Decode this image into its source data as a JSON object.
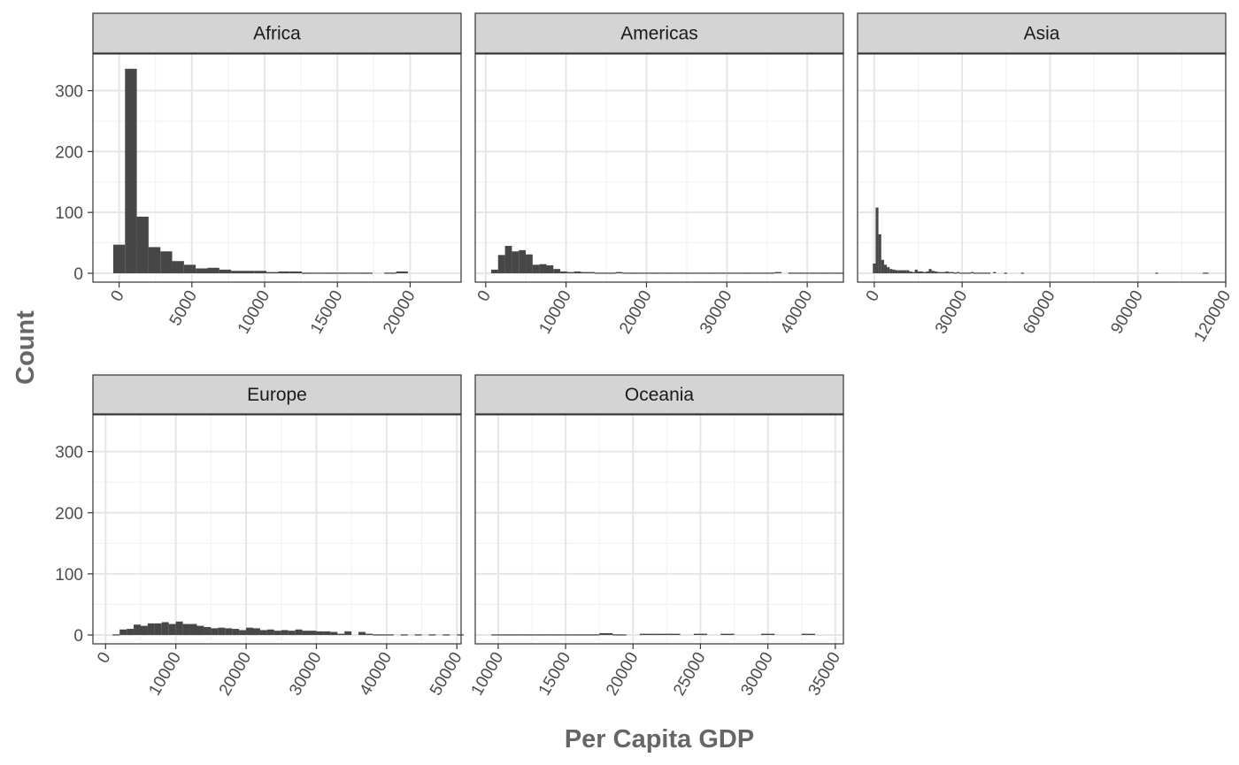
{
  "chart_data": {
    "type": "bar",
    "subtype": "faceted-histogram",
    "xlabel": "Per Capita GDP",
    "ylabel": "Count",
    "ylim": [
      0,
      350
    ],
    "y_ticks": [
      0,
      100,
      200,
      300
    ],
    "grid": true,
    "bar_color": "#474747",
    "strip_fill": "#d4d4d4",
    "facet_layout": {
      "columns": 3,
      "rows": 2
    },
    "facets": [
      {
        "name": "Africa",
        "xlim": [
          -1800,
          23500
        ],
        "x_ticks": [
          0,
          5000,
          10000,
          15000,
          20000
        ],
        "tick_labels": [
          "0",
          "5000",
          "10000",
          "15000",
          "20000"
        ],
        "bin_width": 810,
        "bins_start": -405,
        "counts": [
          47,
          336,
          93,
          43,
          36,
          20,
          14,
          8,
          9,
          6,
          4,
          4,
          4,
          2,
          3,
          3,
          1,
          1,
          1,
          1,
          1,
          1,
          0,
          1,
          3
        ]
      },
      {
        "name": "Americas",
        "xlim": [
          -1300,
          44500
        ],
        "x_ticks": [
          0,
          10000,
          20000,
          30000,
          40000
        ],
        "tick_labels": [
          "0",
          "10000",
          "20000",
          "30000",
          "40000"
        ],
        "bin_width": 860,
        "bins_start": 680,
        "counts": [
          6,
          30,
          45,
          36,
          38,
          31,
          14,
          15,
          13,
          7,
          3,
          2,
          3,
          2,
          2,
          1,
          1,
          1,
          2,
          1,
          1,
          1,
          1,
          1,
          1,
          1,
          1,
          1,
          1,
          1,
          1,
          1,
          1,
          1,
          1,
          1,
          1,
          1,
          1,
          1,
          1,
          2,
          0,
          1,
          1,
          1,
          1,
          1,
          1,
          1,
          1
        ]
      },
      {
        "name": "Asia",
        "xlim": [
          -5700,
          120000
        ],
        "x_ticks": [
          0,
          30000,
          60000,
          90000,
          120000
        ],
        "tick_labels": [
          "0",
          "30000",
          "60000",
          "90000",
          "120000"
        ],
        "bin_width": 955,
        "bins_start": -478,
        "counts": [
          16,
          108,
          64,
          22,
          14,
          10,
          7,
          6,
          5,
          5,
          5,
          5,
          5,
          3,
          2,
          6,
          3,
          3,
          2,
          3,
          7,
          4,
          3,
          2,
          2,
          2,
          3,
          2,
          2,
          1,
          2,
          1,
          1,
          1,
          1,
          2,
          1,
          1,
          1,
          1,
          1,
          1,
          0,
          2,
          0,
          0,
          0,
          1,
          0,
          0,
          0,
          0,
          0,
          1,
          0,
          0,
          0,
          0,
          0,
          0,
          0,
          0,
          0,
          0,
          0,
          0,
          0,
          0,
          0,
          0,
          0,
          0,
          0,
          0,
          0,
          0,
          0,
          0,
          0,
          0,
          0,
          0,
          0,
          0,
          0,
          0,
          0,
          0,
          0,
          0,
          0,
          0,
          0,
          0,
          0,
          0,
          0,
          0,
          0,
          0,
          0,
          1,
          0,
          0,
          0,
          0,
          0,
          0,
          0,
          0,
          0,
          0,
          0,
          0,
          0,
          0,
          0,
          0,
          1,
          1
        ]
      },
      {
        "name": "Europe",
        "xlim": [
          -1800,
          50600
        ],
        "x_ticks": [
          0,
          10000,
          20000,
          30000,
          40000,
          50000
        ],
        "tick_labels": [
          "0",
          "10000",
          "20000",
          "30000",
          "40000",
          "50000"
        ],
        "bin_width": 1000,
        "bins_start": 1000,
        "counts": [
          1,
          9,
          10,
          17,
          15,
          19,
          19,
          21,
          18,
          22,
          18,
          18,
          15,
          13,
          11,
          12,
          11,
          10,
          8,
          12,
          11,
          8,
          9,
          7,
          8,
          7,
          9,
          7,
          7,
          6,
          6,
          5,
          2,
          6,
          0,
          5,
          2,
          1,
          1,
          1,
          0,
          1,
          0,
          1,
          0,
          1,
          0,
          1,
          0,
          1
        ]
      },
      {
        "name": "Oceania",
        "xlim": [
          8300,
          35600
        ],
        "x_ticks": [
          10000,
          15000,
          20000,
          25000,
          30000,
          35000
        ],
        "tick_labels": [
          "10000",
          "15000",
          "20000",
          "25000",
          "30000",
          "35000"
        ],
        "bin_width": 1000,
        "bins_start": 9500,
        "counts": [
          1,
          1,
          1,
          1,
          1,
          1,
          1,
          1,
          3,
          1,
          0,
          2,
          2,
          2,
          0,
          2,
          0,
          2,
          0,
          0,
          2,
          0,
          0,
          2,
          0
        ]
      }
    ]
  }
}
